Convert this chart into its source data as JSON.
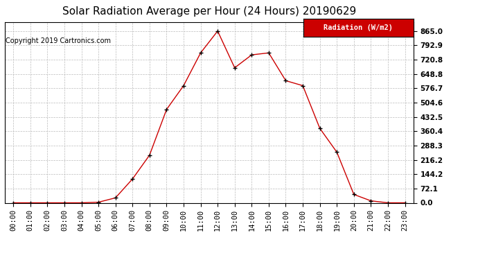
{
  "title": "Solar Radiation Average per Hour (24 Hours) 20190629",
  "copyright": "Copyright 2019 Cartronics.com",
  "legend_label": "Radiation (W/m2)",
  "hours": [
    "00:00",
    "01:00",
    "02:00",
    "03:00",
    "04:00",
    "05:00",
    "06:00",
    "07:00",
    "08:00",
    "09:00",
    "10:00",
    "11:00",
    "12:00",
    "13:00",
    "14:00",
    "15:00",
    "16:00",
    "17:00",
    "18:00",
    "19:00",
    "20:00",
    "21:00",
    "22:00",
    "23:00"
  ],
  "values": [
    0.0,
    0.0,
    0.0,
    0.0,
    0.0,
    3.0,
    25.0,
    120.0,
    240.0,
    470.0,
    590.0,
    755.0,
    865.0,
    680.0,
    745.0,
    755.0,
    615.0,
    590.0,
    375.0,
    255.0,
    42.0,
    10.0,
    0.0,
    0.0
  ],
  "line_color": "#cc0000",
  "marker": "+",
  "marker_color": "#000000",
  "bg_color": "#ffffff",
  "grid_color": "#bbbbbb",
  "yticks": [
    0.0,
    72.1,
    144.2,
    216.2,
    288.3,
    360.4,
    432.5,
    504.6,
    576.7,
    648.8,
    720.8,
    792.9,
    865.0
  ],
  "ylim": [
    0,
    910
  ],
  "legend_bg": "#cc0000",
  "legend_text_color": "#ffffff",
  "title_fontsize": 11,
  "copyright_fontsize": 7,
  "tick_fontsize": 7.5,
  "legend_fontsize": 7.5
}
